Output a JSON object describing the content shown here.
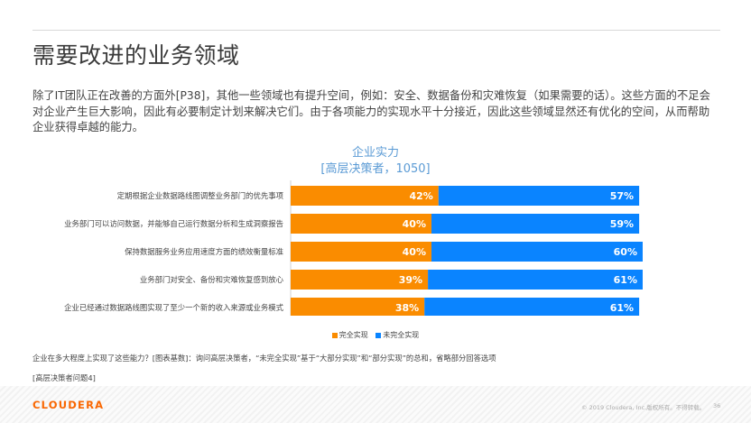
{
  "title": "需要改进的业务领域",
  "intro": "除了IT团队正在改善的方面外[P38]，其他一些领域也有提升空间，例如：安全、数据备份和灾难恢复（如果需要的话）。这些方面的不足会对企业产生巨大影响，因此有必要制定计划来解决它们。由于各项能力的实现水平十分接近，因此这些领域显然还有优化的空间，从而帮助企业获得卓越的能力。",
  "chart_data": {
    "type": "bar",
    "orientation": "horizontal",
    "stacked": true,
    "title": "企业实力",
    "subtitle": "[高层决策者，1050]",
    "categories": [
      "定期根据企业数据路线图调整业务部门的优先事项",
      "业务部门可以访问数据，并能够自己运行数据分析和生成洞察报告",
      "保持数据服务业务应用速度方面的绩效衡量标准",
      "业务部门对安全、备份和灾难恢复感到放心",
      "企业已经通过数据路线图实现了至少一个新的收入来源或业务模式"
    ],
    "series": [
      {
        "name": "完全实现",
        "color": "#fa8c00",
        "values": [
          42,
          40,
          40,
          39,
          38
        ],
        "labels": [
          "42%",
          "40%",
          "40%",
          "39%",
          "38%"
        ]
      },
      {
        "name": "未完全实现",
        "color": "#0a84ff",
        "values": [
          57,
          59,
          60,
          61,
          61
        ],
        "labels": [
          "57%",
          "59%",
          "60%",
          "61%",
          "61%"
        ]
      }
    ],
    "xlim": [
      0,
      100
    ],
    "legend": "bottom",
    "grid": false
  },
  "legend": {
    "full": "完全实现",
    "partial": "未完全实现",
    "full_color": "#fa8c00",
    "partial_color": "#0a84ff"
  },
  "footnote": "企业在多大程度上实现了这些能力？[图表基数]：询问高层决策者，“未完全实现”基于“大部分实现”和“部分实现”的总和，省略部分回答选项",
  "question": "[高层决策者问题4]",
  "footer": {
    "logo": "CLOUDERA",
    "copyright": "© 2019 Cloudera, Inc.版权所有。不得转载。",
    "page": "36"
  }
}
